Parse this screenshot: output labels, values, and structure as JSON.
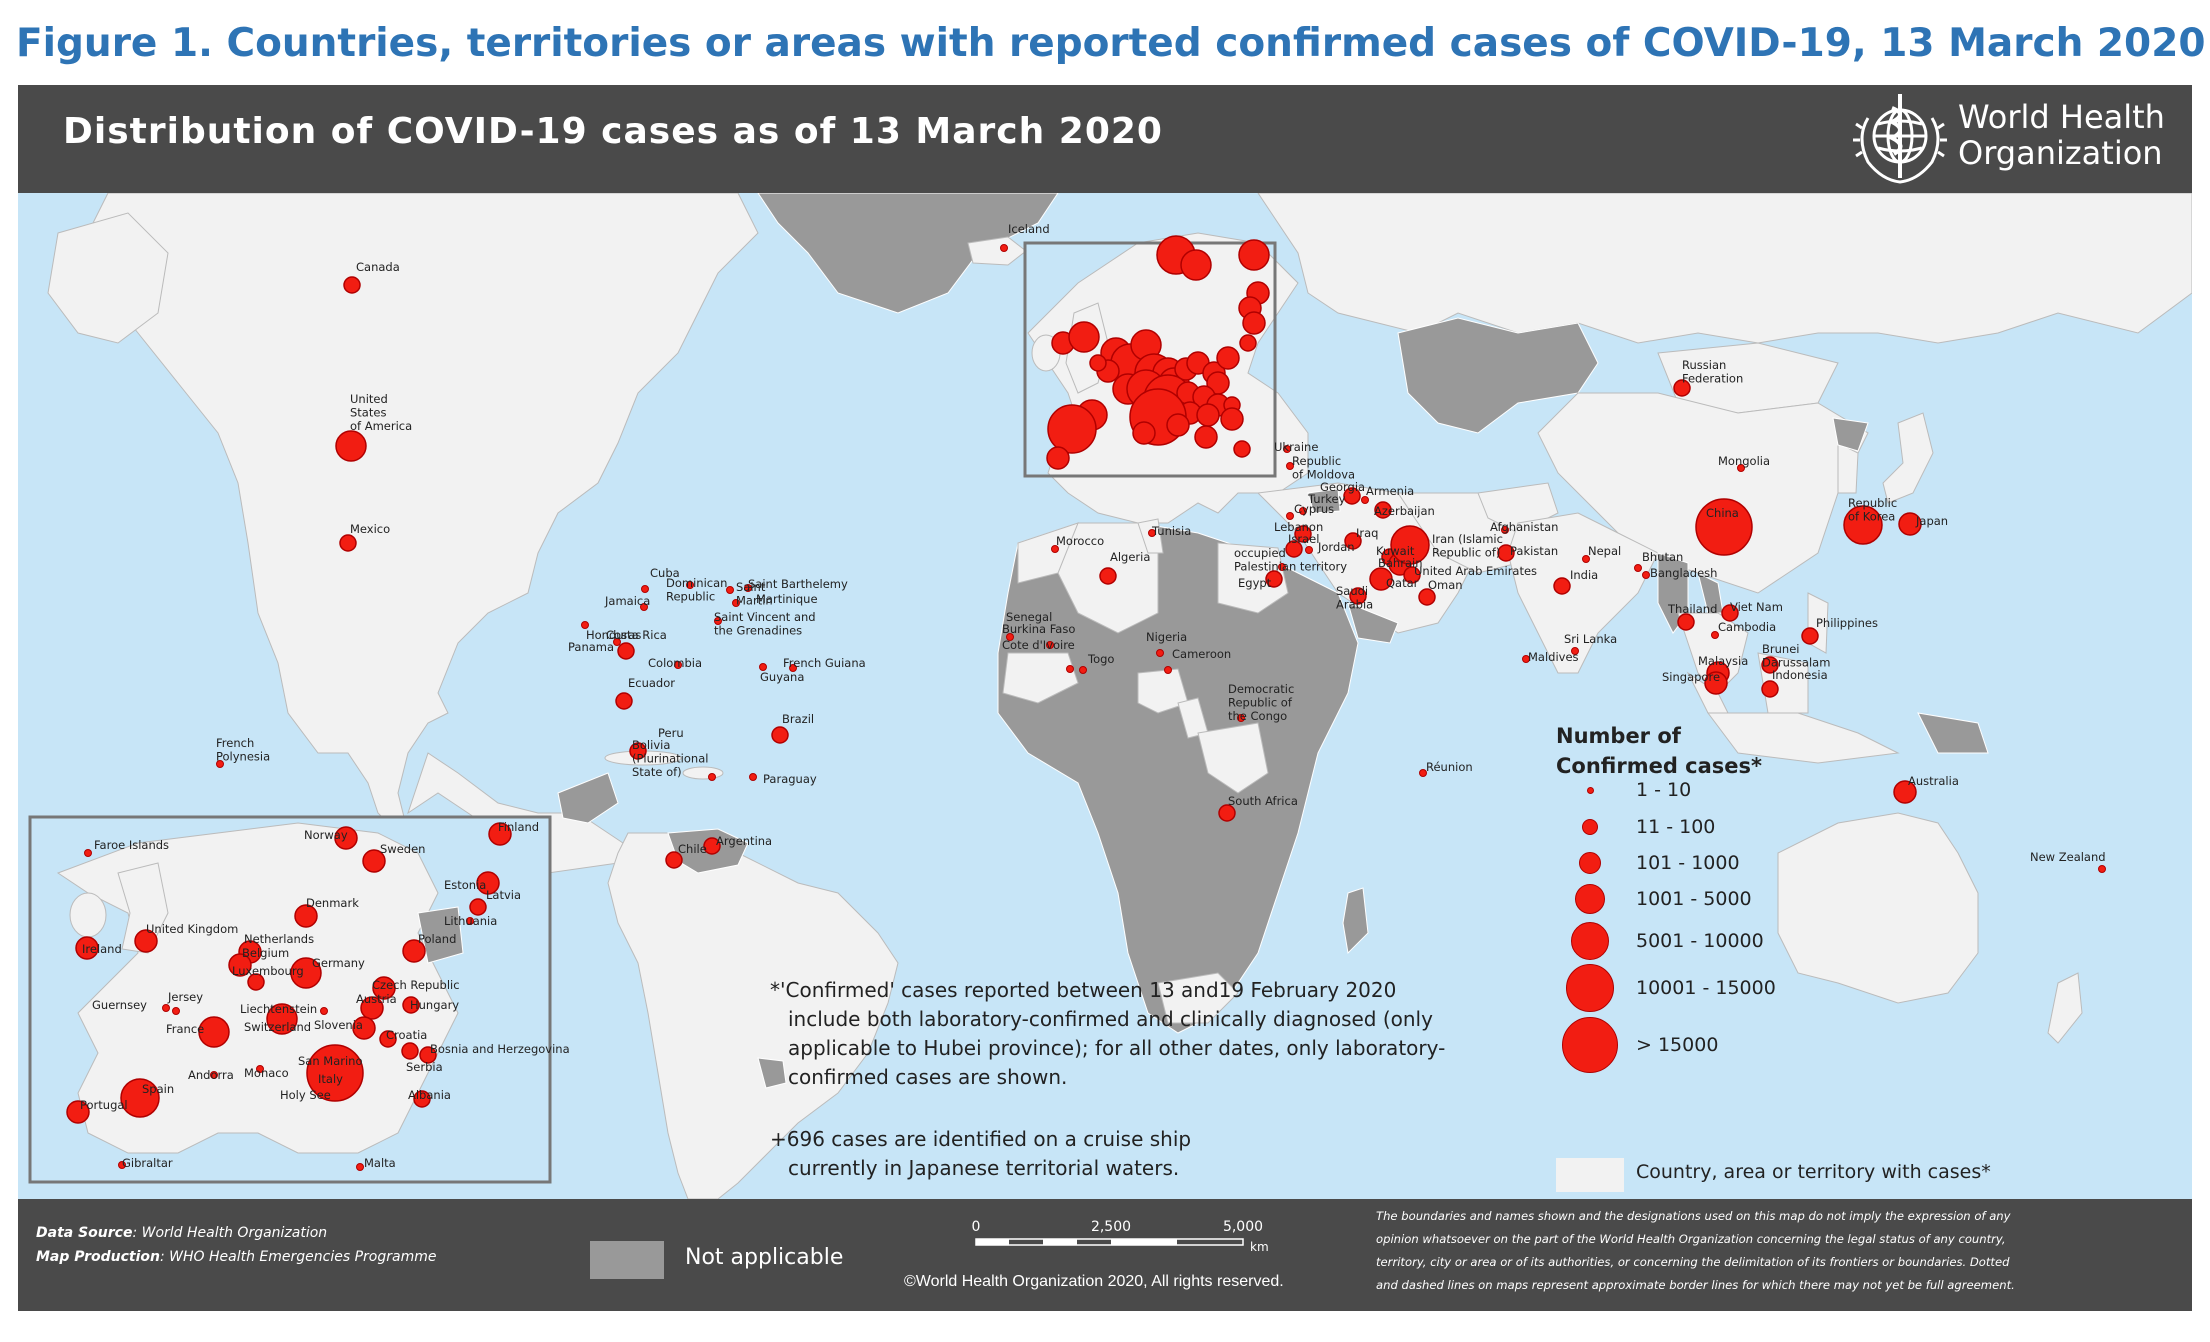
{
  "figure_title": "Figure 1. Countries, territories or areas with reported confirmed cases of COVID-19, 13 March 2020",
  "map_title": "Distribution of COVID-19  cases as of 13 March 2020",
  "who_name": [
    "World Health",
    "Organization"
  ],
  "colors": {
    "water": "#c7e5f7",
    "case_land": "#f2f2f2",
    "na_land": "#999999",
    "header": "#4a4a4a",
    "dot_fill": "#f21d12",
    "dot_stroke": "#b00000",
    "title_blue": "#2e74b5"
  },
  "country_labels": [
    {
      "name": "Iceland",
      "size": 1
    },
    {
      "name": "Canada",
      "size": 2
    },
    {
      "name": "United States of America",
      "lines": [
        "United",
        "States",
        "of America"
      ],
      "size": 4
    },
    {
      "name": "Mexico",
      "size": 2
    },
    {
      "name": "Cuba",
      "size": 1
    },
    {
      "name": "Jamaica",
      "size": 1
    },
    {
      "name": "Honduras",
      "size": 1
    },
    {
      "name": "Costa Rica",
      "size": 1
    },
    {
      "name": "Panama",
      "size": 2
    },
    {
      "name": "Dominican Republic",
      "lines": [
        "Dominican",
        "Republic"
      ],
      "size": 1
    },
    {
      "name": "Saint Martin",
      "lines": [
        "Saint",
        "Martin"
      ],
      "size": 1
    },
    {
      "name": "Saint Barthelemy",
      "size": 1
    },
    {
      "name": "Martinique",
      "size": 1
    },
    {
      "name": "Saint Vincent and the Grenadines",
      "lines": [
        "Saint Vincent and",
        "the Grenadines"
      ],
      "size": 1
    },
    {
      "name": "French Guiana",
      "size": 1
    },
    {
      "name": "Guyana",
      "size": 1
    },
    {
      "name": "Colombia",
      "size": 1
    },
    {
      "name": "Ecuador",
      "size": 2
    },
    {
      "name": "Peru",
      "size": 2
    },
    {
      "name": "Bolivia (Plurinational State of)",
      "lines": [
        "Bolivia",
        "(Plurinational",
        "State of)"
      ],
      "size": 1
    },
    {
      "name": "Brazil",
      "size": 2
    },
    {
      "name": "Paraguay",
      "size": 1
    },
    {
      "name": "Chile",
      "size": 2
    },
    {
      "name": "Argentina",
      "size": 2
    },
    {
      "name": "French Polynesia",
      "lines": [
        "French",
        "Polynesia"
      ],
      "size": 1
    },
    {
      "name": "Morocco",
      "size": 1
    },
    {
      "name": "Algeria",
      "size": 2
    },
    {
      "name": "Tunisia",
      "size": 1
    },
    {
      "name": "Senegal",
      "size": 1
    },
    {
      "name": "Burkina Faso",
      "size": 1
    },
    {
      "name": "Cote d'Ivoire",
      "size": 1
    },
    {
      "name": "Togo",
      "size": 1
    },
    {
      "name": "Nigeria",
      "size": 1
    },
    {
      "name": "Cameroon",
      "size": 1
    },
    {
      "name": "Democratic Republic of the Congo",
      "lines": [
        "Democratic",
        "Republic of",
        "the Congo"
      ],
      "size": 1
    },
    {
      "name": "South Africa",
      "size": 2
    },
    {
      "name": "Réunion",
      "size": 1
    },
    {
      "name": "Egypt",
      "size": 2
    },
    {
      "name": "Palestinian territory",
      "lines": [
        "occupied",
        "Palestinian territory"
      ],
      "size": 1
    },
    {
      "name": "Israel",
      "size": 2
    },
    {
      "name": "Lebanon",
      "size": 2
    },
    {
      "name": "Jordan",
      "size": 1
    },
    {
      "name": "Cyprus",
      "size": 1
    },
    {
      "name": "Turkey",
      "size": 1
    },
    {
      "name": "Georgia",
      "size": 2
    },
    {
      "name": "Armenia",
      "size": 1
    },
    {
      "name": "Azerbaijan",
      "size": 2
    },
    {
      "name": "Iraq",
      "size": 2
    },
    {
      "name": "Kuwait",
      "size": 2
    },
    {
      "name": "Bahrain",
      "size": 3
    },
    {
      "name": "Qatar",
      "size": 3
    },
    {
      "name": "Saudi Arabia",
      "lines": [
        "Saudi",
        "Arabia"
      ],
      "size": 2
    },
    {
      "name": "United Arab Emirates",
      "size": 2
    },
    {
      "name": "Oman",
      "size": 2
    },
    {
      "name": "Iran (Islamic Republic of)",
      "lines": [
        "Iran (Islamic",
        "Republic of)"
      ],
      "size": 5
    },
    {
      "name": "Afghanistan",
      "size": 1
    },
    {
      "name": "Pakistan",
      "size": 2
    },
    {
      "name": "Nepal",
      "size": 1
    },
    {
      "name": "Bhutan",
      "size": 1
    },
    {
      "name": "India",
      "size": 2
    },
    {
      "name": "Bangladesh",
      "size": 1
    },
    {
      "name": "Sri Lanka",
      "size": 1
    },
    {
      "name": "Maldives",
      "size": 1
    },
    {
      "name": "Thailand",
      "size": 2
    },
    {
      "name": "Cambodia",
      "size": 1
    },
    {
      "name": "Viet Nam",
      "size": 2
    },
    {
      "name": "Malaysia",
      "size": 3
    },
    {
      "name": "Singapore",
      "size": 3
    },
    {
      "name": "Brunei Darussalam",
      "lines": [
        "Brunei",
        "Darussalam"
      ],
      "size": 2
    },
    {
      "name": "Indonesia",
      "size": 2
    },
    {
      "name": "Philippines",
      "size": 2
    },
    {
      "name": "China",
      "size": 7
    },
    {
      "name": "Republic of Korea",
      "lines": [
        "Republic",
        "of Korea"
      ],
      "size": 5
    },
    {
      "name": "Japan",
      "size": 3
    },
    {
      "name": "Mongolia",
      "size": 1
    },
    {
      "name": "Russian Federation",
      "lines": [
        "Russian",
        "Federation"
      ],
      "size": 2
    },
    {
      "name": "Ukraine",
      "size": 1
    },
    {
      "name": "Republic of Moldova",
      "lines": [
        "Republic",
        "of Moldova"
      ],
      "size": 1
    },
    {
      "name": "Australia",
      "size": 3
    },
    {
      "name": "New Zealand",
      "size": 1
    }
  ],
  "inset_labels": [
    {
      "name": "Faroe Islands",
      "size": 1
    },
    {
      "name": "Norway",
      "size": 3
    },
    {
      "name": "Sweden",
      "size": 3
    },
    {
      "name": "Finland",
      "size": 3
    },
    {
      "name": "Estonia",
      "size": 3
    },
    {
      "name": "Latvia",
      "size": 2
    },
    {
      "name": "Lithuania",
      "size": 1
    },
    {
      "name": "Denmark",
      "size": 3
    },
    {
      "name": "United Kingdom",
      "size": 3
    },
    {
      "name": "Ireland",
      "size": 3
    },
    {
      "name": "Netherlands",
      "size": 3
    },
    {
      "name": "Belgium",
      "size": 3
    },
    {
      "name": "Luxembourg",
      "size": 2
    },
    {
      "name": "Germany",
      "size": 4
    },
    {
      "name": "Poland",
      "size": 3
    },
    {
      "name": "Czech Republic",
      "size": 3
    },
    {
      "name": "Austria",
      "size": 3
    },
    {
      "name": "Hungary",
      "size": 2
    },
    {
      "name": "Liechtenstein",
      "size": 1
    },
    {
      "name": "Switzerland",
      "size": 4
    },
    {
      "name": "Slovenia",
      "size": 3
    },
    {
      "name": "Croatia",
      "size": 2
    },
    {
      "name": "Bosnia and Herzegovina",
      "size": 2
    },
    {
      "name": "Serbia",
      "size": 2
    },
    {
      "name": "San Marino",
      "size": 2
    },
    {
      "name": "Monaco",
      "size": 1
    },
    {
      "name": "Holy See",
      "size": 1
    },
    {
      "name": "Italy",
      "size": 7
    },
    {
      "name": "Albania",
      "size": 2
    },
    {
      "name": "France",
      "size": 4
    },
    {
      "name": "Andorra",
      "size": 1
    },
    {
      "name": "Spain",
      "size": 5
    },
    {
      "name": "Portugal",
      "size": 3
    },
    {
      "name": "Guernsey",
      "size": 1
    },
    {
      "name": "Jersey",
      "size": 1
    },
    {
      "name": "Gibraltar",
      "size": 1
    },
    {
      "name": "Malta",
      "size": 1
    }
  ],
  "legend": {
    "title": [
      "Number of",
      "Confirmed cases*"
    ],
    "classes": [
      {
        "label": "1 - 10",
        "size": 1
      },
      {
        "label": "11 - 100",
        "size": 2
      },
      {
        "label": "101 - 1000",
        "size": 3
      },
      {
        "label": "1001 - 5000",
        "size": 4
      },
      {
        "label": "5001 - 10000",
        "size": 5
      },
      {
        "label": "10001 - 15000",
        "size": 6
      },
      {
        "label": "> 15000",
        "size": 7
      }
    ],
    "case_land_label": "Country, area or territory with cases*"
  },
  "footnote": [
    "*'Confirmed' cases reported between 13 and19 February 2020",
    "include both laboratory-confirmed and clinically diagnosed (only",
    "applicable to Hubei province); for all other dates, only laboratory-",
    "confirmed cases are shown."
  ],
  "cruise_note": [
    "+696 cases are identified on a cruise ship",
    "currently in Japanese territorial waters."
  ],
  "footer": {
    "data_source_label": "Data Source",
    "data_source": ": World Health Organization",
    "map_production_label": "Map Production",
    "map_production": ": WHO Health Emergencies Programme",
    "not_applicable": "Not applicable",
    "scale_ticks": [
      "0",
      "2,500",
      "5,000"
    ],
    "scale_unit": "km",
    "copyright": "©World Health Organization  2020,  All rights reserved.",
    "disclaimer": [
      "The boundaries and names shown and the designations used on this map do not imply the expression of any",
      "opinion whatsoever on the part of the World Health Organization concerning the legal status of any country,",
      "territory, city or area or of its authorities, or concerning the delimitation of its frontiers or boundaries. Dotted",
      "and dashed lines on maps represent approximate border lines for which there may not yet be full agreement."
    ]
  }
}
